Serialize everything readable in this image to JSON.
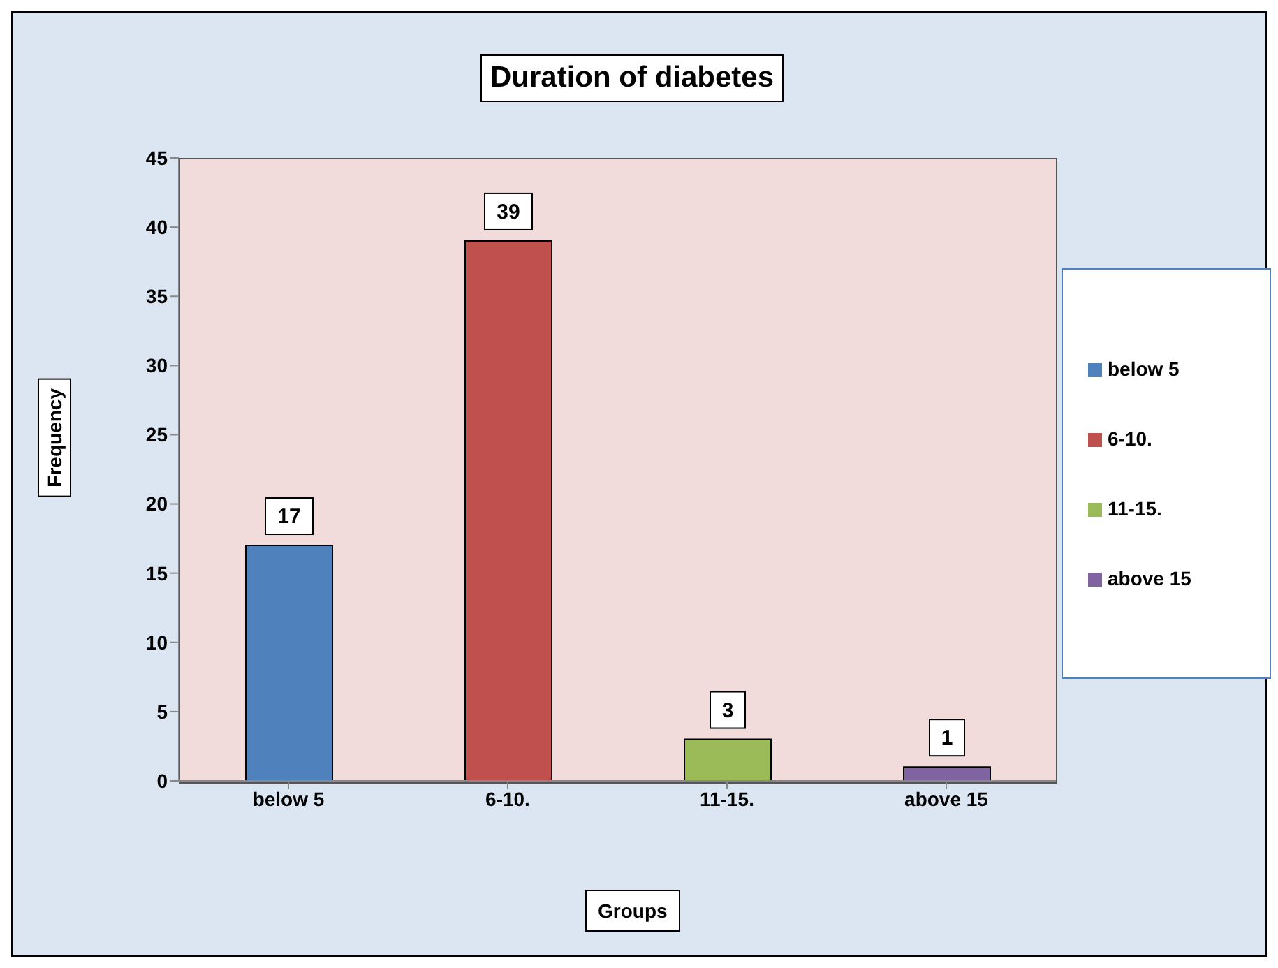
{
  "chart_data": {
    "type": "bar",
    "title": "Duration of diabetes",
    "xlabel": "Groups",
    "ylabel": "Frequency",
    "categories": [
      "below 5",
      "6-10.",
      "11-15.",
      "above 15"
    ],
    "series": [
      {
        "name": "below 5",
        "color": "#4f81bd",
        "values": [
          17,
          null,
          null,
          null
        ]
      },
      {
        "name": "6-10.",
        "color": "#c0504d",
        "values": [
          null,
          39,
          null,
          null
        ]
      },
      {
        "name": "11-15.",
        "color": "#9bbb59",
        "values": [
          null,
          null,
          3,
          null
        ]
      },
      {
        "name": "above 15",
        "color": "#8064a2",
        "values": [
          null,
          null,
          null,
          1
        ]
      }
    ],
    "stacked": true,
    "ylim": [
      0,
      45
    ],
    "yticks": [
      0,
      5,
      10,
      15,
      20,
      25,
      30,
      35,
      40,
      45
    ],
    "data_labels": true,
    "legend": "right",
    "grid": false
  }
}
